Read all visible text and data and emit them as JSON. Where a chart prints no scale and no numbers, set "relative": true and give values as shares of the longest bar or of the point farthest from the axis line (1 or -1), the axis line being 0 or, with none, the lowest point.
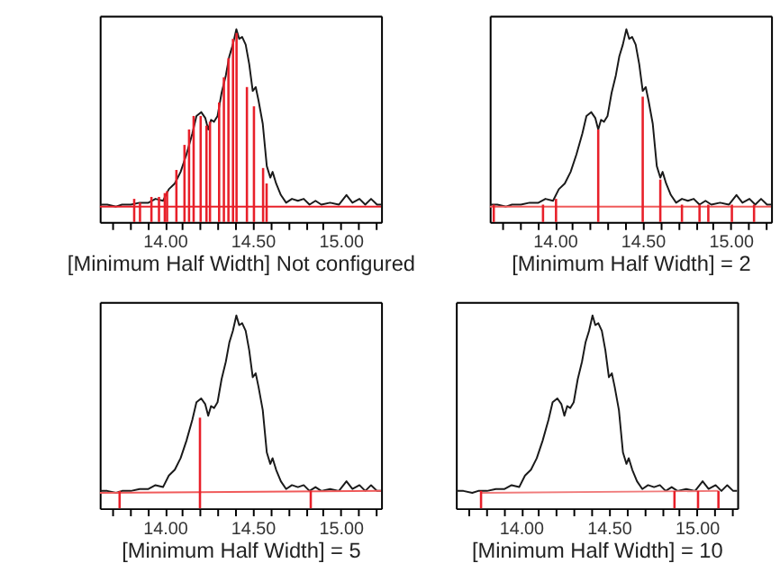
{
  "chart_data": [
    {
      "type": "line",
      "relative": true,
      "xlabel": "[Minimum Half Width] Not configured",
      "xlim": [
        13.63,
        15.23
      ],
      "tick_labels": "x",
      "xticks": [
        {
          "value": 13.7,
          "label": null
        },
        {
          "value": 13.8,
          "label": null
        },
        {
          "value": 13.9,
          "label": null
        },
        {
          "value": 14.0,
          "label": "14.00"
        },
        {
          "value": 14.1,
          "label": null
        },
        {
          "value": 14.2,
          "label": null
        },
        {
          "value": 14.3,
          "label": null
        },
        {
          "value": 14.4,
          "label": null
        },
        {
          "value": 14.5,
          "label": "14.50"
        },
        {
          "value": 14.6,
          "label": null
        },
        {
          "value": 14.7,
          "label": null
        },
        {
          "value": 14.8,
          "label": null
        },
        {
          "value": 14.9,
          "label": null
        },
        {
          "value": 15.0,
          "label": "15.00"
        },
        {
          "value": 15.1,
          "label": null
        },
        {
          "value": 15.2,
          "label": null
        }
      ],
      "series": [
        {
          "type": "line",
          "color": "#1a1a1a",
          "x": [
            13.633,
            13.673,
            13.723,
            13.757,
            13.807,
            13.857,
            13.907,
            13.947,
            13.99,
            14.023,
            14.057,
            14.09,
            14.123,
            14.157,
            14.18,
            14.207,
            14.23,
            14.247,
            14.263,
            14.28,
            14.3,
            14.323,
            14.347,
            14.367,
            14.387,
            14.407,
            14.423,
            14.44,
            14.46,
            14.48,
            14.5,
            14.517,
            14.533,
            14.557,
            14.58,
            14.6,
            14.613,
            14.633,
            14.66,
            14.69,
            14.723,
            14.757,
            14.79,
            14.823,
            14.857,
            14.89,
            14.94,
            14.99,
            15.033,
            15.067,
            15.107,
            15.14,
            15.173,
            15.207,
            15.23
          ],
          "values": [
            0.09,
            0.09,
            0.08,
            0.09,
            0.09,
            0.1,
            0.1,
            0.12,
            0.11,
            0.17,
            0.2,
            0.26,
            0.35,
            0.46,
            0.55,
            0.57,
            0.54,
            0.48,
            0.53,
            0.52,
            0.55,
            0.67,
            0.76,
            0.86,
            0.92,
            1,
            0.95,
            0.96,
            0.92,
            0.82,
            0.68,
            0.7,
            0.63,
            0.51,
            0.29,
            0.23,
            0.26,
            0.2,
            0.14,
            0.1,
            0.12,
            0.11,
            0.12,
            0.09,
            0.11,
            0.09,
            0.1,
            0.09,
            0.14,
            0.1,
            0.12,
            0.09,
            0.12,
            0.09,
            0.09
          ]
        },
        {
          "type": "line",
          "color": "#e8202a",
          "x": [
            13.63,
            15.23
          ],
          "values": [
            0.08,
            0.08
          ]
        },
        {
          "type": "bar",
          "color": "#e8202a",
          "x": [
            13.826,
            13.859,
            13.924,
            13.967,
            14.0,
            14.013,
            14.066,
            14.112,
            14.138,
            14.164,
            14.204,
            14.237,
            14.257,
            14.309,
            14.336,
            14.362,
            14.388,
            14.408,
            14.467,
            14.507,
            14.559,
            14.579
          ],
          "values": [
            0.12,
            0.1,
            0.13,
            0.13,
            0.15,
            0.16,
            0.27,
            0.4,
            0.48,
            0.55,
            0.55,
            0.5,
            0.52,
            0.62,
            0.75,
            0.85,
            0.95,
            0.98,
            0.7,
            0.6,
            0.28,
            0.2
          ]
        }
      ]
    },
    {
      "type": "line",
      "relative": true,
      "xlabel": "[Minimum Half Width] = 2",
      "xlim": [
        13.63,
        15.23
      ],
      "tick_labels": "x",
      "xticks": [
        {
          "value": 13.7,
          "label": null
        },
        {
          "value": 13.8,
          "label": null
        },
        {
          "value": 13.9,
          "label": null
        },
        {
          "value": 14.0,
          "label": "14.00"
        },
        {
          "value": 14.1,
          "label": null
        },
        {
          "value": 14.2,
          "label": null
        },
        {
          "value": 14.3,
          "label": null
        },
        {
          "value": 14.4,
          "label": null
        },
        {
          "value": 14.5,
          "label": "14.50"
        },
        {
          "value": 14.6,
          "label": null
        },
        {
          "value": 14.7,
          "label": null
        },
        {
          "value": 14.8,
          "label": null
        },
        {
          "value": 14.9,
          "label": null
        },
        {
          "value": 15.0,
          "label": "15.00"
        },
        {
          "value": 15.1,
          "label": null
        },
        {
          "value": 15.2,
          "label": null
        }
      ],
      "series": [
        {
          "type": "line",
          "color": "#1a1a1a",
          "x": [
            13.633,
            13.673,
            13.723,
            13.757,
            13.807,
            13.857,
            13.907,
            13.947,
            13.99,
            14.023,
            14.057,
            14.09,
            14.123,
            14.157,
            14.18,
            14.207,
            14.23,
            14.247,
            14.263,
            14.28,
            14.3,
            14.323,
            14.347,
            14.367,
            14.387,
            14.407,
            14.423,
            14.44,
            14.46,
            14.48,
            14.5,
            14.517,
            14.533,
            14.557,
            14.58,
            14.6,
            14.613,
            14.633,
            14.66,
            14.69,
            14.723,
            14.757,
            14.79,
            14.823,
            14.857,
            14.89,
            14.94,
            14.99,
            15.033,
            15.067,
            15.107,
            15.14,
            15.173,
            15.207,
            15.23
          ],
          "values": [
            0.09,
            0.09,
            0.08,
            0.09,
            0.09,
            0.1,
            0.1,
            0.12,
            0.11,
            0.17,
            0.2,
            0.26,
            0.35,
            0.46,
            0.55,
            0.57,
            0.54,
            0.48,
            0.53,
            0.52,
            0.55,
            0.67,
            0.76,
            0.86,
            0.92,
            1,
            0.95,
            0.96,
            0.92,
            0.82,
            0.68,
            0.7,
            0.63,
            0.51,
            0.29,
            0.23,
            0.26,
            0.2,
            0.14,
            0.1,
            0.12,
            0.11,
            0.12,
            0.09,
            0.11,
            0.09,
            0.1,
            0.09,
            0.14,
            0.1,
            0.12,
            0.09,
            0.12,
            0.09,
            0.09
          ]
        },
        {
          "type": "line",
          "color": "#f05a5a",
          "x": [
            13.63,
            15.23
          ],
          "values": [
            0.08,
            0.08
          ]
        },
        {
          "type": "bar",
          "color": "#e8202a",
          "x": [
            13.653,
            13.933,
            14.007,
            14.247,
            14.5,
            14.6,
            14.723,
            14.823,
            14.873,
            15.007,
            15.133
          ],
          "values": [
            0.09,
            0.09,
            0.12,
            0.48,
            0.65,
            0.22,
            0.09,
            0.09,
            0.09,
            0.09,
            0.09
          ]
        }
      ]
    },
    {
      "type": "line",
      "relative": true,
      "xlabel": "[Minimum Half Width] = 5",
      "xlim": [
        13.63,
        15.23
      ],
      "tick_labels": "x",
      "xticks": [
        {
          "value": 13.7,
          "label": null
        },
        {
          "value": 13.8,
          "label": null
        },
        {
          "value": 13.9,
          "label": null
        },
        {
          "value": 14.0,
          "label": "14.00"
        },
        {
          "value": 14.1,
          "label": null
        },
        {
          "value": 14.2,
          "label": null
        },
        {
          "value": 14.3,
          "label": null
        },
        {
          "value": 14.4,
          "label": null
        },
        {
          "value": 14.5,
          "label": "14.50"
        },
        {
          "value": 14.6,
          "label": null
        },
        {
          "value": 14.7,
          "label": null
        },
        {
          "value": 14.8,
          "label": null
        },
        {
          "value": 14.9,
          "label": null
        },
        {
          "value": 15.0,
          "label": "15.00"
        },
        {
          "value": 15.1,
          "label": null
        },
        {
          "value": 15.2,
          "label": null
        }
      ],
      "series": [
        {
          "type": "line",
          "color": "#1a1a1a",
          "x": [
            13.633,
            13.673,
            13.723,
            13.757,
            13.807,
            13.857,
            13.907,
            13.947,
            13.99,
            14.023,
            14.057,
            14.09,
            14.123,
            14.157,
            14.18,
            14.207,
            14.23,
            14.247,
            14.263,
            14.28,
            14.3,
            14.323,
            14.347,
            14.367,
            14.387,
            14.407,
            14.423,
            14.44,
            14.46,
            14.48,
            14.5,
            14.517,
            14.533,
            14.557,
            14.58,
            14.6,
            14.613,
            14.633,
            14.66,
            14.69,
            14.723,
            14.757,
            14.79,
            14.823,
            14.857,
            14.89,
            14.94,
            14.99,
            15.033,
            15.067,
            15.107,
            15.14,
            15.173,
            15.207,
            15.23
          ],
          "values": [
            0.09,
            0.09,
            0.08,
            0.09,
            0.09,
            0.1,
            0.1,
            0.12,
            0.11,
            0.17,
            0.2,
            0.26,
            0.35,
            0.46,
            0.55,
            0.57,
            0.54,
            0.48,
            0.53,
            0.52,
            0.55,
            0.67,
            0.76,
            0.86,
            0.92,
            1,
            0.95,
            0.96,
            0.92,
            0.82,
            0.68,
            0.7,
            0.63,
            0.51,
            0.29,
            0.23,
            0.26,
            0.2,
            0.14,
            0.1,
            0.12,
            0.11,
            0.12,
            0.09,
            0.11,
            0.09,
            0.1,
            0.09,
            0.14,
            0.1,
            0.12,
            0.09,
            0.12,
            0.09,
            0.09
          ]
        },
        {
          "type": "line",
          "color": "#f05a5a",
          "x": [
            13.63,
            15.23
          ],
          "values": [
            0.08,
            0.09
          ]
        },
        {
          "type": "bar",
          "color": "#e8202a",
          "x": [
            13.743,
            14.2,
            14.83
          ],
          "values": [
            0.09,
            0.47,
            0.09
          ]
        }
      ]
    },
    {
      "type": "line",
      "relative": true,
      "xlabel": "[Minimum Half Width] = 10",
      "xlim": [
        13.63,
        15.23
      ],
      "tick_labels": "x",
      "xticks": [
        {
          "value": 13.7,
          "label": null
        },
        {
          "value": 13.8,
          "label": null
        },
        {
          "value": 13.9,
          "label": null
        },
        {
          "value": 14.0,
          "label": "14.00"
        },
        {
          "value": 14.1,
          "label": null
        },
        {
          "value": 14.2,
          "label": null
        },
        {
          "value": 14.3,
          "label": null
        },
        {
          "value": 14.4,
          "label": null
        },
        {
          "value": 14.5,
          "label": "14.50"
        },
        {
          "value": 14.6,
          "label": null
        },
        {
          "value": 14.7,
          "label": null
        },
        {
          "value": 14.8,
          "label": null
        },
        {
          "value": 14.9,
          "label": null
        },
        {
          "value": 15.0,
          "label": "15.00"
        },
        {
          "value": 15.1,
          "label": null
        },
        {
          "value": 15.2,
          "label": null
        }
      ],
      "series": [
        {
          "type": "line",
          "color": "#1a1a1a",
          "x": [
            13.633,
            13.673,
            13.723,
            13.757,
            13.807,
            13.857,
            13.907,
            13.947,
            13.99,
            14.023,
            14.057,
            14.09,
            14.123,
            14.157,
            14.18,
            14.207,
            14.23,
            14.247,
            14.263,
            14.28,
            14.3,
            14.323,
            14.347,
            14.367,
            14.387,
            14.407,
            14.423,
            14.44,
            14.46,
            14.48,
            14.5,
            14.517,
            14.533,
            14.557,
            14.58,
            14.6,
            14.613,
            14.633,
            14.66,
            14.69,
            14.723,
            14.757,
            14.79,
            14.823,
            14.857,
            14.89,
            14.94,
            14.99,
            15.033,
            15.067,
            15.107,
            15.14,
            15.173,
            15.207,
            15.23
          ],
          "values": [
            0.09,
            0.09,
            0.08,
            0.09,
            0.09,
            0.1,
            0.1,
            0.12,
            0.11,
            0.17,
            0.2,
            0.26,
            0.35,
            0.46,
            0.55,
            0.57,
            0.54,
            0.48,
            0.53,
            0.52,
            0.55,
            0.67,
            0.76,
            0.86,
            0.92,
            1,
            0.95,
            0.96,
            0.92,
            0.82,
            0.68,
            0.7,
            0.63,
            0.51,
            0.29,
            0.23,
            0.26,
            0.2,
            0.14,
            0.1,
            0.12,
            0.11,
            0.12,
            0.09,
            0.11,
            0.09,
            0.1,
            0.09,
            0.14,
            0.1,
            0.12,
            0.09,
            0.12,
            0.09,
            0.09
          ]
        },
        {
          "type": "line",
          "color": "#f07a7a",
          "x": [
            13.773,
            15.123
          ],
          "values": [
            0.08,
            0.09
          ]
        },
        {
          "type": "bar",
          "color": "#e8202a",
          "x": [
            13.773,
            14.873,
            15.007,
            15.123
          ],
          "values": [
            0.09,
            0.09,
            0.09,
            0.09
          ]
        }
      ]
    }
  ]
}
